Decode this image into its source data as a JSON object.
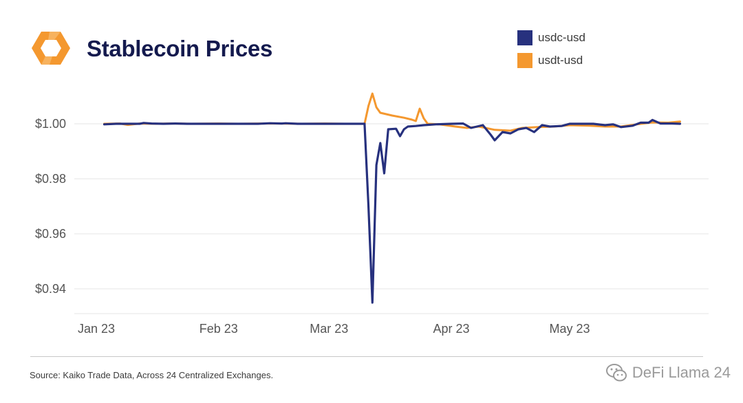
{
  "header": {
    "title": "Stablecoin Prices",
    "logo_icon": "kaiko-hexagon-logo"
  },
  "colors": {
    "usdc": "#27317e",
    "usdt": "#f4982f",
    "grid": "#e6e6e6",
    "title": "#141a4e"
  },
  "footer": {
    "source": "Source: Kaiko Trade Data, Across 24 Centralized Exchanges.",
    "watermark": "DeFi Llama 24",
    "watermark_icon": "wechat-icon"
  },
  "chart_data": {
    "type": "line",
    "title": "Stablecoin Prices",
    "xlabel": "",
    "ylabel": "",
    "ylim": [
      0.93,
      1.015
    ],
    "yticks": [
      1.0,
      0.98,
      0.96,
      0.94
    ],
    "ytick_labels": [
      "$1.00",
      "$0.98",
      "$0.96",
      "$0.94"
    ],
    "xticks": [
      "2023-01-01",
      "2023-02-01",
      "2023-03-01",
      "2023-04-01",
      "2023-05-01"
    ],
    "xtick_labels": [
      "Jan 23",
      "Feb 23",
      "Mar 23",
      "Apr 23",
      "May 23"
    ],
    "xlim": [
      "2023-01-01",
      "2023-05-31"
    ],
    "grid": "horizontal",
    "legend_position": "top-right",
    "series": [
      {
        "name": "usdc-usd",
        "points": [
          [
            "2023-01-03",
            0.9998
          ],
          [
            "2023-01-06",
            1.0
          ],
          [
            "2023-01-09",
            1.0
          ],
          [
            "2023-01-12",
            1.0
          ],
          [
            "2023-01-13",
            1.0003
          ],
          [
            "2023-01-15",
            1.0001
          ],
          [
            "2023-01-18",
            1.0
          ],
          [
            "2023-01-21",
            1.0001
          ],
          [
            "2023-01-24",
            1.0
          ],
          [
            "2023-01-28",
            1.0
          ],
          [
            "2023-02-01",
            1.0
          ],
          [
            "2023-02-05",
            1.0
          ],
          [
            "2023-02-08",
            1.0
          ],
          [
            "2023-02-11",
            1.0
          ],
          [
            "2023-02-14",
            1.0002
          ],
          [
            "2023-02-17",
            1.0001
          ],
          [
            "2023-02-18",
            1.0002
          ],
          [
            "2023-02-21",
            1.0
          ],
          [
            "2023-02-24",
            1.0
          ],
          [
            "2023-02-27",
            1.0
          ],
          [
            "2023-03-02",
            1.0
          ],
          [
            "2023-03-05",
            1.0
          ],
          [
            "2023-03-08",
            1.0
          ],
          [
            "2023-03-10",
            1.0
          ],
          [
            "2023-03-11",
            0.97
          ],
          [
            "2023-03-12",
            0.935
          ],
          [
            "2023-03-13",
            0.985
          ],
          [
            "2023-03-14",
            0.993
          ],
          [
            "2023-03-15",
            0.982
          ],
          [
            "2023-03-16",
            0.998
          ],
          [
            "2023-03-18",
            0.9982
          ],
          [
            "2023-03-19",
            0.9955
          ],
          [
            "2023-03-20",
            0.998
          ],
          [
            "2023-03-21",
            0.999
          ],
          [
            "2023-03-23",
            0.9992
          ],
          [
            "2023-03-25",
            0.9995
          ],
          [
            "2023-03-28",
            0.9998
          ],
          [
            "2023-04-01",
            1.0
          ],
          [
            "2023-04-04",
            1.0001
          ],
          [
            "2023-04-06",
            0.9985
          ],
          [
            "2023-04-09",
            0.9995
          ],
          [
            "2023-04-11",
            0.996
          ],
          [
            "2023-04-12",
            0.994
          ],
          [
            "2023-04-14",
            0.997
          ],
          [
            "2023-04-16",
            0.9965
          ],
          [
            "2023-04-18",
            0.998
          ],
          [
            "2023-04-20",
            0.9985
          ],
          [
            "2023-04-22",
            0.997
          ],
          [
            "2023-04-24",
            0.9995
          ],
          [
            "2023-04-26",
            0.999
          ],
          [
            "2023-04-29",
            0.9992
          ],
          [
            "2023-05-01",
            1.0
          ],
          [
            "2023-05-04",
            1.0
          ],
          [
            "2023-05-07",
            1.0
          ],
          [
            "2023-05-10",
            0.9995
          ],
          [
            "2023-05-12",
            0.9998
          ],
          [
            "2023-05-14",
            0.9988
          ],
          [
            "2023-05-17",
            0.9993
          ],
          [
            "2023-05-19",
            1.0004
          ],
          [
            "2023-05-21",
            1.0004
          ],
          [
            "2023-05-22",
            1.0014
          ],
          [
            "2023-05-24",
            1.0001
          ],
          [
            "2023-05-27",
            1.0001
          ],
          [
            "2023-05-29",
            1.0
          ]
        ]
      },
      {
        "name": "usdt-usd",
        "points": [
          [
            "2023-01-03",
            1.0
          ],
          [
            "2023-01-07",
            1.0001
          ],
          [
            "2023-01-09",
            0.9996
          ],
          [
            "2023-01-12",
            1.0001
          ],
          [
            "2023-01-16",
            1.0
          ],
          [
            "2023-01-20",
            1.0001
          ],
          [
            "2023-01-25",
            1.0
          ],
          [
            "2023-02-01",
            1.0001
          ],
          [
            "2023-02-06",
            1.0
          ],
          [
            "2023-02-12",
            1.0001
          ],
          [
            "2023-02-17",
            1.0001
          ],
          [
            "2023-02-22",
            1.0
          ],
          [
            "2023-02-28",
            1.0001
          ],
          [
            "2023-03-05",
            1.0
          ],
          [
            "2023-03-09",
            1.0
          ],
          [
            "2023-03-10",
            1.0
          ],
          [
            "2023-03-11",
            1.0065
          ],
          [
            "2023-03-12",
            1.011
          ],
          [
            "2023-03-13",
            1.006
          ],
          [
            "2023-03-14",
            1.004
          ],
          [
            "2023-03-17",
            1.003
          ],
          [
            "2023-03-20",
            1.0022
          ],
          [
            "2023-03-22",
            1.0015
          ],
          [
            "2023-03-23",
            1.001
          ],
          [
            "2023-03-24",
            1.0055
          ],
          [
            "2023-03-25",
            1.002
          ],
          [
            "2023-03-26",
            1.0
          ],
          [
            "2023-03-29",
            0.9998
          ],
          [
            "2023-04-02",
            0.999
          ],
          [
            "2023-04-05",
            0.9985
          ],
          [
            "2023-04-08",
            0.999
          ],
          [
            "2023-04-12",
            0.9978
          ],
          [
            "2023-04-16",
            0.9975
          ],
          [
            "2023-04-19",
            0.9985
          ],
          [
            "2023-04-23",
            0.9988
          ],
          [
            "2023-04-27",
            0.999
          ],
          [
            "2023-05-01",
            0.9995
          ],
          [
            "2023-05-06",
            0.9993
          ],
          [
            "2023-05-10",
            0.999
          ],
          [
            "2023-05-14",
            0.999
          ],
          [
            "2023-05-18",
            0.9998
          ],
          [
            "2023-05-22",
            1.0005
          ],
          [
            "2023-05-26",
            1.0004
          ],
          [
            "2023-05-29",
            1.0008
          ]
        ]
      }
    ]
  }
}
